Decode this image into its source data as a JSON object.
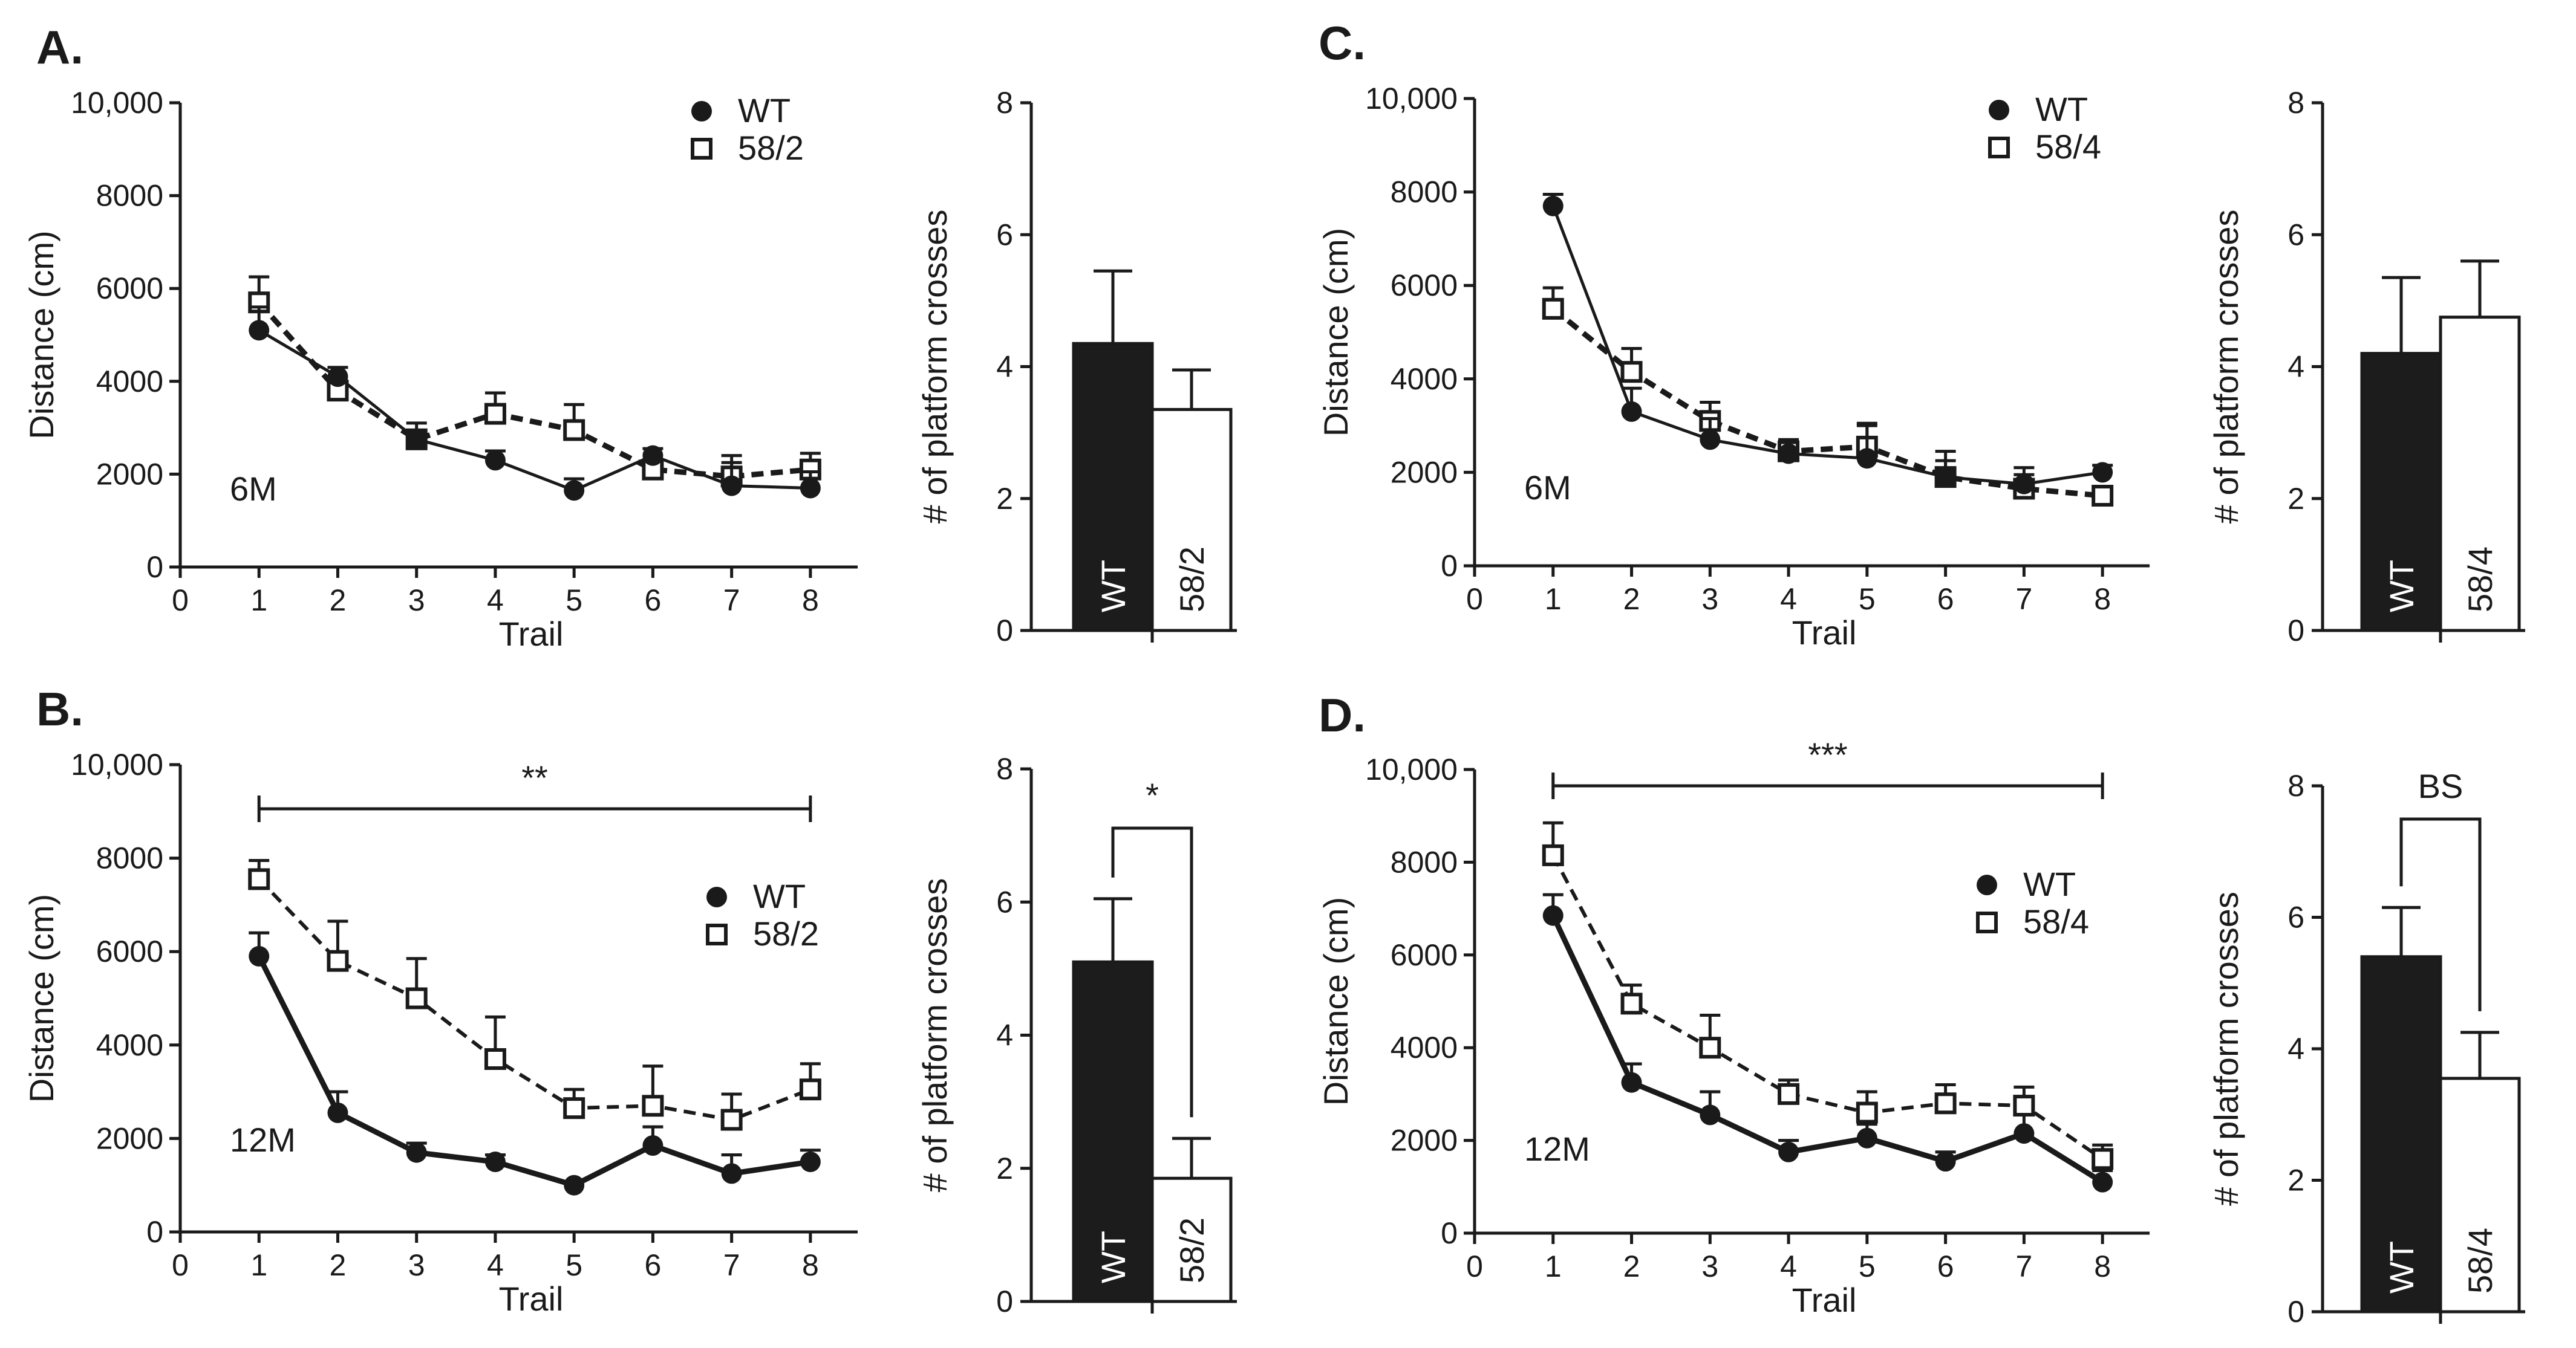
{
  "chart_data": [
    {
      "id": "A-line",
      "type": "line",
      "panel_label": "A.",
      "age_label": "6M",
      "xlabel": "Trail",
      "ylabel": "Distance (cm)",
      "xlim": [
        0,
        8.6
      ],
      "ylim": [
        0,
        10000
      ],
      "xticks": [
        0,
        1,
        2,
        3,
        4,
        5,
        6,
        7,
        8
      ],
      "yticks": [
        0,
        2000,
        4000,
        6000,
        8000,
        10000
      ],
      "ytick_labels": [
        "0",
        "2000",
        "4000",
        "6000",
        "8000",
        "10,000"
      ],
      "x": [
        1,
        2,
        3,
        4,
        5,
        6,
        7,
        8
      ],
      "series": [
        {
          "name": "WT",
          "marker": "filled-circle",
          "line": "solid",
          "values": [
            5100,
            4100,
            2750,
            2300,
            1650,
            2400,
            1750,
            1700
          ],
          "err": [
            500,
            200,
            200,
            200,
            250,
            150,
            500,
            350
          ]
        },
        {
          "name": "58/2",
          "marker": "open-square",
          "line": "dashed",
          "values": [
            5700,
            3800,
            2750,
            3300,
            2950,
            2100,
            1950,
            2100
          ],
          "err": [
            550,
            200,
            350,
            450,
            550,
            200,
            450,
            350
          ]
        }
      ],
      "significance": null
    },
    {
      "id": "A-bar",
      "type": "bar",
      "ylabel": "# of platform crosses",
      "ylim": [
        0,
        8
      ],
      "yticks": [
        0,
        2,
        4,
        6,
        8
      ],
      "ytick_labels": [
        "0",
        "2",
        "4",
        "6",
        "8"
      ],
      "categories": [
        "WT",
        "58/2"
      ],
      "values": [
        4.35,
        3.35
      ],
      "err": [
        1.1,
        0.6
      ],
      "significance": null
    },
    {
      "id": "B-line",
      "type": "line",
      "panel_label": "B.",
      "age_label": "12M",
      "xlabel": "Trail",
      "ylabel": "Distance (cm)",
      "xlim": [
        0,
        8.6
      ],
      "ylim": [
        0,
        10000
      ],
      "xticks": [
        0,
        1,
        2,
        3,
        4,
        5,
        6,
        7,
        8
      ],
      "yticks": [
        0,
        2000,
        4000,
        6000,
        8000,
        10000
      ],
      "ytick_labels": [
        "0",
        "2000",
        "4000",
        "6000",
        "8000",
        "10,000"
      ],
      "x": [
        1,
        2,
        3,
        4,
        5,
        6,
        7,
        8
      ],
      "series": [
        {
          "name": "WT",
          "marker": "filled-circle",
          "line": "solid",
          "values": [
            5900,
            2550,
            1700,
            1500,
            1000,
            1850,
            1250,
            1500
          ],
          "err": [
            500,
            450,
            200,
            150,
            80,
            400,
            400,
            250
          ]
        },
        {
          "name": "58/2",
          "marker": "open-square",
          "line": "dashed",
          "values": [
            7550,
            5800,
            5000,
            3700,
            2650,
            2700,
            2400,
            3050
          ],
          "err": [
            400,
            850,
            850,
            900,
            400,
            850,
            550,
            550
          ]
        }
      ],
      "significance": {
        "label": "**",
        "from": 1,
        "to": 8
      }
    },
    {
      "id": "B-bar",
      "type": "bar",
      "ylabel": "# of platform crosses",
      "ylim": [
        0,
        8
      ],
      "yticks": [
        0,
        2,
        4,
        6,
        8
      ],
      "ytick_labels": [
        "0",
        "2",
        "4",
        "6",
        "8"
      ],
      "categories": [
        "WT",
        "58/2"
      ],
      "values": [
        5.1,
        1.85
      ],
      "err": [
        0.95,
        0.6
      ],
      "significance": {
        "label": "*"
      }
    },
    {
      "id": "C-line",
      "type": "line",
      "panel_label": "C.",
      "age_label": "6M",
      "xlabel": "Trail",
      "ylabel": "Distance (cm)",
      "xlim": [
        0,
        8.6
      ],
      "ylim": [
        0,
        10000
      ],
      "xticks": [
        0,
        1,
        2,
        3,
        4,
        5,
        6,
        7,
        8
      ],
      "yticks": [
        0,
        2000,
        4000,
        6000,
        8000,
        10000
      ],
      "ytick_labels": [
        "0",
        "2000",
        "4000",
        "6000",
        "8000",
        "10,000"
      ],
      "x": [
        1,
        2,
        3,
        4,
        5,
        6,
        7,
        8
      ],
      "series": [
        {
          "name": "WT",
          "marker": "filled-circle",
          "line": "solid",
          "values": [
            7700,
            3300,
            2700,
            2400,
            2300,
            1900,
            1750,
            2000
          ],
          "err": [
            250,
            500,
            450,
            300,
            700,
            550,
            350,
            150
          ]
        },
        {
          "name": "58/4",
          "marker": "open-square",
          "line": "dashed",
          "values": [
            5500,
            4150,
            3100,
            2450,
            2550,
            1900,
            1650,
            1500
          ],
          "err": [
            450,
            500,
            400,
            200,
            500,
            350,
            300,
            200
          ]
        }
      ],
      "significance": null
    },
    {
      "id": "C-bar",
      "type": "bar",
      "ylabel": "# of platform crosses",
      "ylim": [
        0,
        8
      ],
      "yticks": [
        0,
        2,
        4,
        6,
        8
      ],
      "ytick_labels": [
        "0",
        "2",
        "4",
        "6",
        "8"
      ],
      "categories": [
        "WT",
        "58/4"
      ],
      "values": [
        4.2,
        4.75
      ],
      "err": [
        1.15,
        0.85
      ],
      "significance": null
    },
    {
      "id": "D-line",
      "type": "line",
      "panel_label": "D.",
      "age_label": "12M",
      "xlabel": "Trail",
      "ylabel": "Distance (cm)",
      "xlim": [
        0,
        8.6
      ],
      "ylim": [
        0,
        10000
      ],
      "xticks": [
        0,
        1,
        2,
        3,
        4,
        5,
        6,
        7,
        8
      ],
      "yticks": [
        0,
        2000,
        4000,
        6000,
        8000,
        10000
      ],
      "ytick_labels": [
        "0",
        "2000",
        "4000",
        "6000",
        "8000",
        "10,000"
      ],
      "x": [
        1,
        2,
        3,
        4,
        5,
        6,
        7,
        8
      ],
      "series": [
        {
          "name": "WT",
          "marker": "filled-circle",
          "line": "solid",
          "values": [
            6850,
            3250,
            2550,
            1750,
            2050,
            1550,
            2150,
            1100
          ],
          "err": [
            450,
            400,
            500,
            250,
            300,
            200,
            400,
            250
          ]
        },
        {
          "name": "58/4",
          "marker": "open-square",
          "line": "dashed",
          "values": [
            8150,
            4950,
            4000,
            3000,
            2600,
            2800,
            2750,
            1600
          ],
          "err": [
            700,
            400,
            700,
            300,
            450,
            400,
            400,
            300
          ]
        }
      ],
      "significance": {
        "label": "***",
        "from": 1,
        "to": 8
      }
    },
    {
      "id": "D-bar",
      "type": "bar",
      "ylabel": "# of platform crosses",
      "ylim": [
        0,
        8
      ],
      "yticks": [
        0,
        2,
        4,
        6,
        8
      ],
      "ytick_labels": [
        "0",
        "2",
        "4",
        "6",
        "8"
      ],
      "categories": [
        "WT",
        "58/4"
      ],
      "values": [
        5.4,
        3.55
      ],
      "err": [
        0.75,
        0.7
      ],
      "significance": {
        "label": "BS"
      }
    }
  ]
}
